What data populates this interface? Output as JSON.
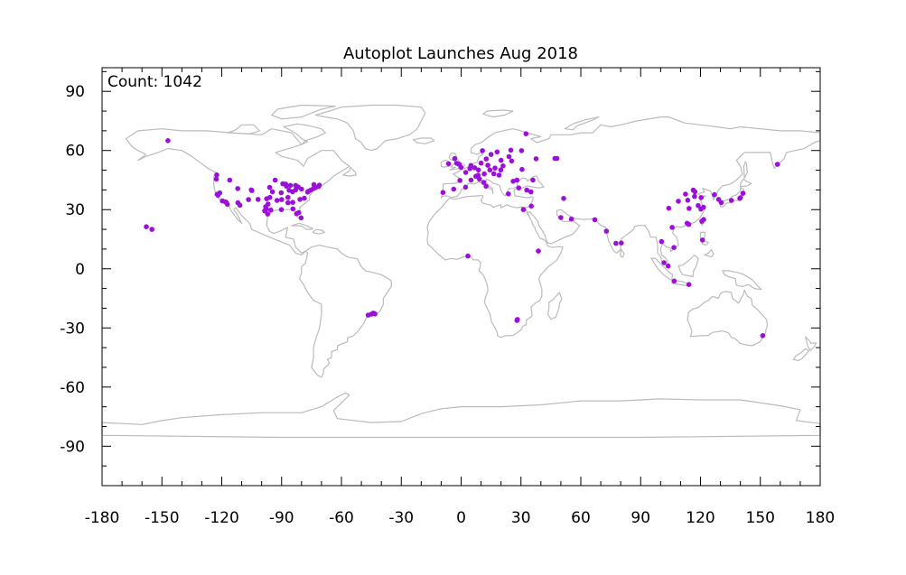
{
  "chart_data": {
    "type": "scatter",
    "title": "Autoplot Launches Aug 2018",
    "annotation": "Count: 1042",
    "xlabel": "",
    "ylabel": "",
    "xlim": [
      -180,
      180
    ],
    "ylim": [
      -110,
      102
    ],
    "xticks": [
      -180,
      -150,
      -120,
      -90,
      -60,
      -30,
      0,
      30,
      60,
      90,
      120,
      150,
      180
    ],
    "xtick_labels": [
      "-180",
      "-150",
      "-120",
      "-90",
      "-60",
      "-30",
      "0",
      "30",
      "60",
      "90",
      "120",
      "150",
      "180"
    ],
    "yticks": [
      90,
      60,
      30,
      0,
      -30,
      -60,
      -90
    ],
    "ytick_labels": [
      "90",
      "60",
      "30",
      "0",
      "-30",
      "-60",
      "-90"
    ],
    "grid": false,
    "background_map": "world-coastlines-borders",
    "colors": {
      "points": "#9b10d8",
      "map": "#bbbbbb",
      "axes": "#000000"
    },
    "series": [
      {
        "name": "",
        "points": [
          [
            -147,
            65
          ],
          [
            -157.8,
            21.3
          ],
          [
            -155,
            20
          ],
          [
            -122.5,
            47.6
          ],
          [
            -122.7,
            45.5
          ],
          [
            -122.3,
            37.8
          ],
          [
            -121.9,
            37.3
          ],
          [
            -121,
            38.5
          ],
          [
            -118.2,
            34
          ],
          [
            -117.2,
            32.7
          ],
          [
            -119.7,
            34.4
          ],
          [
            -117.8,
            33.7
          ],
          [
            -116,
            45
          ],
          [
            -112,
            40.7
          ],
          [
            -111.9,
            33.5
          ],
          [
            -110.9,
            32.2
          ],
          [
            -106.6,
            35.1
          ],
          [
            -104.9,
            39.7
          ],
          [
            -105.2,
            40
          ],
          [
            -97.7,
            30.3
          ],
          [
            -96.8,
            32.8
          ],
          [
            -95.4,
            29.8
          ],
          [
            -98.5,
            29.4
          ],
          [
            -97,
            27.8
          ],
          [
            -93.2,
            45
          ],
          [
            -96,
            41.3
          ],
          [
            -94.6,
            39.1
          ],
          [
            -90.2,
            38.6
          ],
          [
            -87.6,
            41.9
          ],
          [
            -88,
            43
          ],
          [
            -89.4,
            43.1
          ],
          [
            -86.2,
            39.8
          ],
          [
            -84.5,
            39.1
          ],
          [
            -83,
            40
          ],
          [
            -83,
            42.3
          ],
          [
            -85.6,
            42.3
          ],
          [
            -81.7,
            41.5
          ],
          [
            -80,
            40.4
          ],
          [
            -77,
            38.9
          ],
          [
            -76.6,
            39.3
          ],
          [
            -75.2,
            40
          ],
          [
            -74,
            40.7
          ],
          [
            -73.8,
            42.7
          ],
          [
            -71.1,
            42.4
          ],
          [
            -72.9,
            41.3
          ],
          [
            -71.4,
            41.8
          ],
          [
            -78.6,
            35.8
          ],
          [
            -80.8,
            35.2
          ],
          [
            -84.4,
            33.7
          ],
          [
            -86.8,
            33.5
          ],
          [
            -86.8,
            36.2
          ],
          [
            -90,
            35.1
          ],
          [
            -84.3,
            30.4
          ],
          [
            -81.4,
            28.5
          ],
          [
            -80.2,
            25.8
          ],
          [
            -82.5,
            27.9
          ],
          [
            -90.1,
            30
          ],
          [
            -92.3,
            34.7
          ],
          [
            -97.5,
            35.5
          ],
          [
            -95.9,
            36.2
          ],
          [
            -98,
            31.5
          ],
          [
            -101.8,
            35.2
          ],
          [
            -46.6,
            -23.5
          ],
          [
            -43.2,
            -22.9
          ],
          [
            -44,
            -22.5
          ],
          [
            -45,
            -23
          ],
          [
            -0.1,
            51.5
          ],
          [
            -2.2,
            53.5
          ],
          [
            -3.2,
            55.9
          ],
          [
            -6.3,
            53.3
          ],
          [
            2.3,
            48.9
          ],
          [
            4.9,
            52.4
          ],
          [
            4.4,
            50.8
          ],
          [
            6.8,
            51.2
          ],
          [
            8.7,
            50.1
          ],
          [
            11.6,
            48.1
          ],
          [
            13.4,
            52.5
          ],
          [
            10,
            53.6
          ],
          [
            12.6,
            55.7
          ],
          [
            10.7,
            59.9
          ],
          [
            18,
            59.3
          ],
          [
            24.9,
            60.2
          ],
          [
            16.4,
            48.2
          ],
          [
            14.4,
            50.1
          ],
          [
            19,
            47.5
          ],
          [
            21,
            52.2
          ],
          [
            19.9,
            50.1
          ],
          [
            7.4,
            46.9
          ],
          [
            8.5,
            47.4
          ],
          [
            11.3,
            43.8
          ],
          [
            12.5,
            41.9
          ],
          [
            9.2,
            45.5
          ],
          [
            -3.7,
            40.4
          ],
          [
            2.2,
            41.4
          ],
          [
            -9.1,
            38.7
          ],
          [
            23.7,
            38
          ],
          [
            26.1,
            44.4
          ],
          [
            30.5,
            50.4
          ],
          [
            37.6,
            55.8
          ],
          [
            30.3,
            59.9
          ],
          [
            28,
            45
          ],
          [
            24,
            56.9
          ],
          [
            25.3,
            54.7
          ],
          [
            20,
            55
          ],
          [
            15,
            58
          ],
          [
            -1,
            53
          ],
          [
            5,
            45
          ],
          [
            -0.6,
            44.8
          ],
          [
            17,
            51.1
          ],
          [
            32.5,
            68.5
          ],
          [
            36,
            45
          ],
          [
            35,
            39
          ],
          [
            28.9,
            41
          ],
          [
            32.9,
            39.9
          ],
          [
            35.2,
            31.8
          ],
          [
            31.2,
            30
          ],
          [
            51.4,
            35.7
          ],
          [
            47,
            56
          ],
          [
            48,
            56
          ],
          [
            38.7,
            9
          ],
          [
            3.4,
            6.5
          ],
          [
            28.2,
            -25.7
          ],
          [
            28,
            -26.2
          ],
          [
            55.3,
            25.2
          ],
          [
            50,
            26
          ],
          [
            67,
            24.9
          ],
          [
            72.8,
            19.1
          ],
          [
            77.6,
            12.9
          ],
          [
            80.3,
            13.1
          ],
          [
            100.5,
            13.8
          ],
          [
            106.7,
            10.8
          ],
          [
            101.7,
            3.1
          ],
          [
            103.8,
            1.4
          ],
          [
            106.8,
            -6.2
          ],
          [
            114.2,
            -8
          ],
          [
            116.4,
            39.9
          ],
          [
            117.2,
            39.1
          ],
          [
            121.5,
            31.2
          ],
          [
            120.2,
            30.3
          ],
          [
            118.8,
            32.1
          ],
          [
            113.3,
            23.1
          ],
          [
            114.1,
            22.5
          ],
          [
            114.3,
            30.6
          ],
          [
            104.1,
            30.7
          ],
          [
            108.9,
            34.3
          ],
          [
            113.6,
            34.8
          ],
          [
            117,
            36.7
          ],
          [
            121,
            14.6
          ],
          [
            121.6,
            25
          ],
          [
            120.7,
            24.1
          ],
          [
            126.98,
            37.57
          ],
          [
            129.1,
            35.2
          ],
          [
            139.7,
            35.7
          ],
          [
            135.5,
            34.7
          ],
          [
            130.4,
            33.6
          ],
          [
            141.3,
            38.3
          ],
          [
            140,
            36
          ],
          [
            158.6,
            53
          ],
          [
            151.2,
            -33.9
          ],
          [
            105.8,
            21.0
          ],
          [
            120.3,
            36.1
          ],
          [
            112.5,
            37.9
          ]
        ]
      }
    ]
  }
}
